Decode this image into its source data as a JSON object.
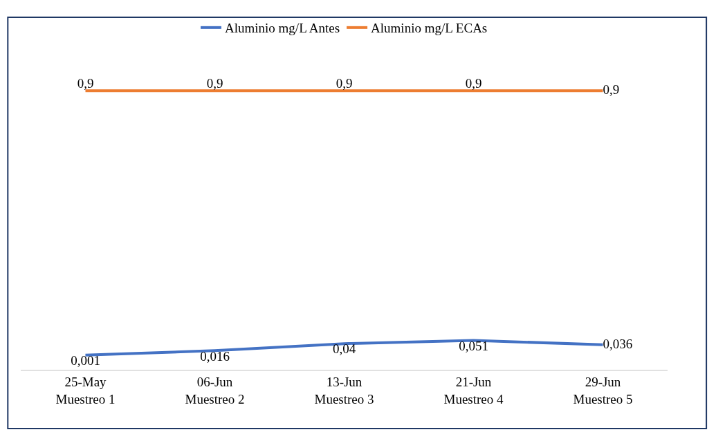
{
  "chart_data": {
    "type": "line",
    "categories": [
      "25-May\nMuestreo 1",
      "06-Jun\nMuestreo 2",
      "13-Jun\nMuestreo 3",
      "21-Jun\nMuestreo 4",
      "29-Jun\nMuestreo 5"
    ],
    "series": [
      {
        "name": "Aluminio mg/L Antes",
        "color": "#4472c4",
        "values": [
          0.001,
          0.016,
          0.04,
          0.051,
          0.036
        ],
        "value_labels": [
          "0,001",
          "0,016",
          "0,04",
          "0,051",
          "0,036"
        ]
      },
      {
        "name": "Aluminio mg/L ECAs",
        "color": "#ed7d31",
        "values": [
          0.9,
          0.9,
          0.9,
          0.9,
          0.9
        ],
        "value_labels": [
          "0,9",
          "0,9",
          "0,9",
          "0,9",
          "0,9"
        ]
      }
    ],
    "legend": "top",
    "marker": "none",
    "line_style": "solid"
  }
}
